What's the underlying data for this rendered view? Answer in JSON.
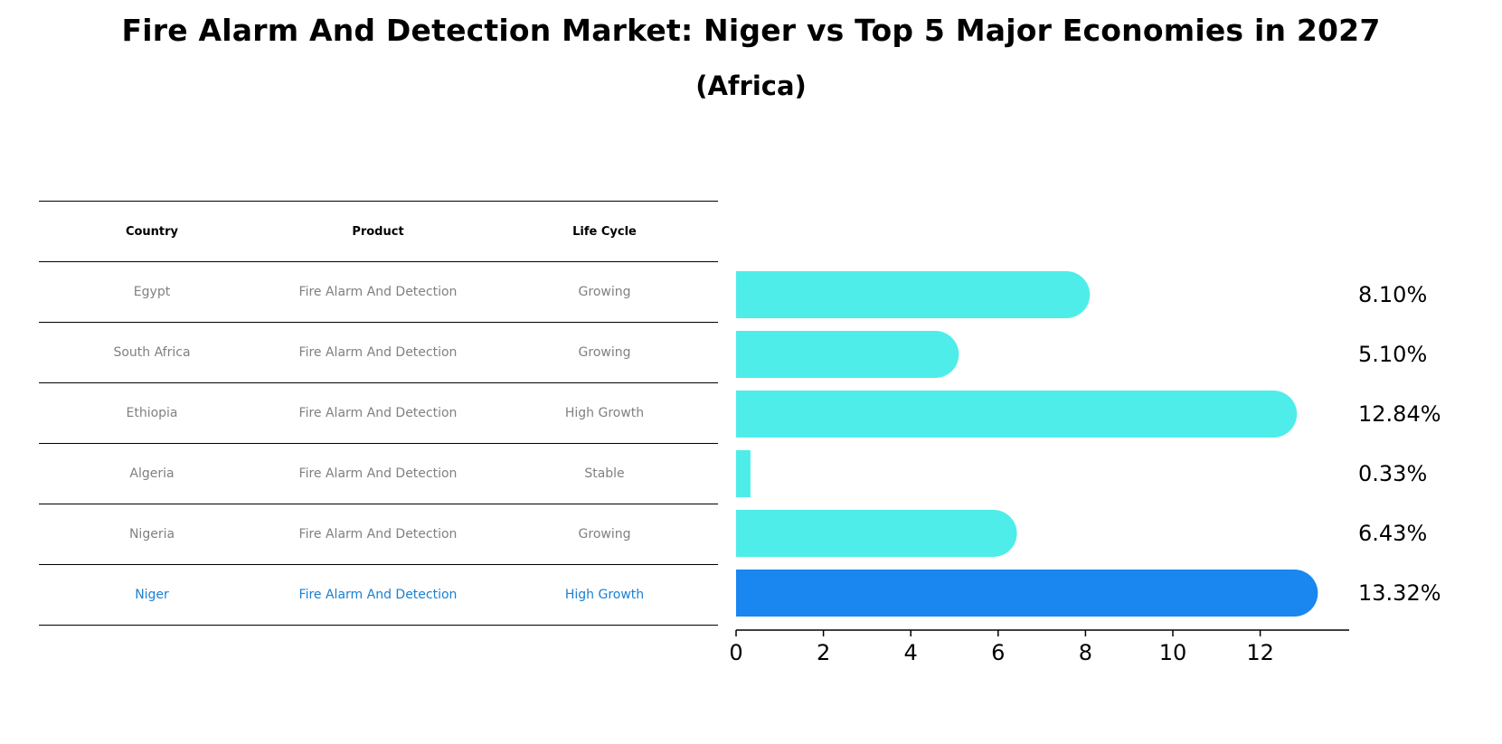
{
  "title": "Fire Alarm And Detection Market: Niger vs Top 5 Major Economies in 2027",
  "subtitle": "(Africa)",
  "table": {
    "headers": [
      "Country",
      "Product",
      "Life Cycle"
    ],
    "rows": [
      [
        "Egypt",
        "Fire Alarm And Detection",
        "Growing"
      ],
      [
        "South Africa",
        "Fire Alarm And Detection",
        "Growing"
      ],
      [
        "Ethiopia",
        "Fire Alarm And Detection",
        "High Growth"
      ],
      [
        "Algeria",
        "Fire Alarm And Detection",
        "Stable"
      ],
      [
        "Nigeria",
        "Fire Alarm And Detection",
        "Growing"
      ],
      [
        "Niger",
        "Fire Alarm And Detection",
        "High Growth"
      ]
    ],
    "highlight_row": 5
  },
  "chart_data": {
    "type": "bar",
    "orientation": "horizontal",
    "categories": [
      "Egypt",
      "South Africa",
      "Ethiopia",
      "Algeria",
      "Nigeria",
      "Niger"
    ],
    "values": [
      8.1,
      5.1,
      12.84,
      0.33,
      6.43,
      13.32
    ],
    "value_labels": [
      "8.10%",
      "5.10%",
      "12.84%",
      "0.33%",
      "6.43%",
      "13.32%"
    ],
    "xlim": [
      0,
      14
    ],
    "xticks": [
      0,
      2,
      4,
      6,
      8,
      10,
      12
    ],
    "grid": false,
    "colors": {
      "default": "#4eede9",
      "highlight": "#1a86f0"
    },
    "highlight_index": 5
  }
}
